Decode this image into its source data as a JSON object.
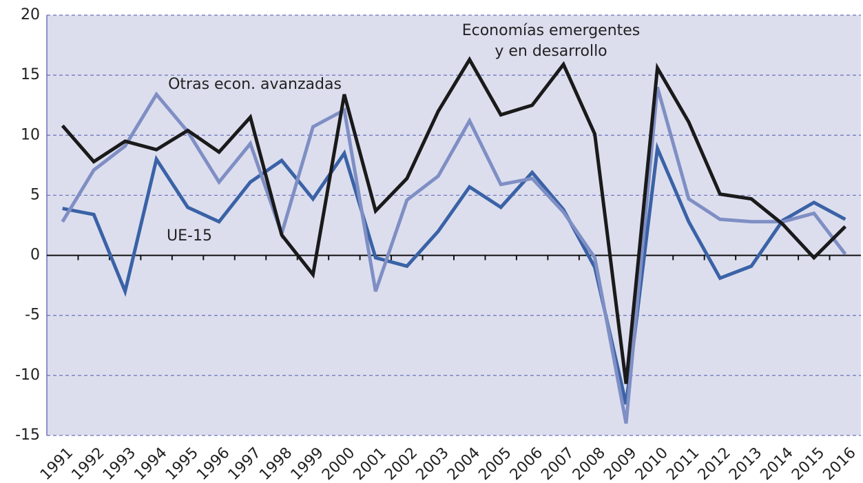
{
  "chart_data": {
    "type": "line",
    "categories": [
      "1991",
      "1992",
      "1993",
      "1994",
      "1995",
      "1996",
      "1997",
      "1998",
      "1999",
      "2000",
      "2001",
      "2002",
      "2003",
      "2004",
      "2005",
      "2006",
      "2007",
      "2008",
      "2009",
      "2010",
      "2011",
      "2012",
      "2013",
      "2014",
      "2015",
      "2016"
    ],
    "series": [
      {
        "name": "UE-15",
        "color": "#3a62a6",
        "values": [
          3.9,
          3.4,
          -3.0,
          8.0,
          4.0,
          2.8,
          6.1,
          7.9,
          4.7,
          8.5,
          -0.2,
          -0.9,
          2.0,
          5.7,
          4.0,
          6.9,
          3.8,
          -1.0,
          -12.4,
          8.9,
          2.8,
          -1.9,
          -0.9,
          2.9,
          4.4,
          3.0
        ]
      },
      {
        "name": "Otras econ. avanzadas",
        "color": "#7f8fc4",
        "values": [
          2.8,
          7.1,
          9.1,
          13.4,
          10.3,
          6.1,
          9.3,
          1.8,
          10.7,
          12.1,
          -3.0,
          4.6,
          6.6,
          11.2,
          5.9,
          6.4,
          3.6,
          -0.2,
          -14.0,
          14.0,
          4.7,
          3.0,
          2.8,
          2.8,
          3.5,
          0.1
        ]
      },
      {
        "name": "Economías emergentes y en desarrollo",
        "color": "#1a1a1a",
        "values": [
          10.8,
          7.8,
          9.5,
          8.8,
          10.4,
          8.6,
          11.5,
          1.7,
          -1.6,
          13.4,
          3.7,
          6.4,
          12.0,
          16.3,
          11.7,
          12.5,
          15.9,
          10.1,
          -10.7,
          15.6,
          11.1,
          5.1,
          4.7,
          2.6,
          -0.2,
          2.4
        ]
      }
    ],
    "ylim": [
      -15,
      20
    ],
    "yticks": [
      20,
      15,
      10,
      5,
      0,
      -5,
      -10,
      -15
    ],
    "grid": true
  }
}
